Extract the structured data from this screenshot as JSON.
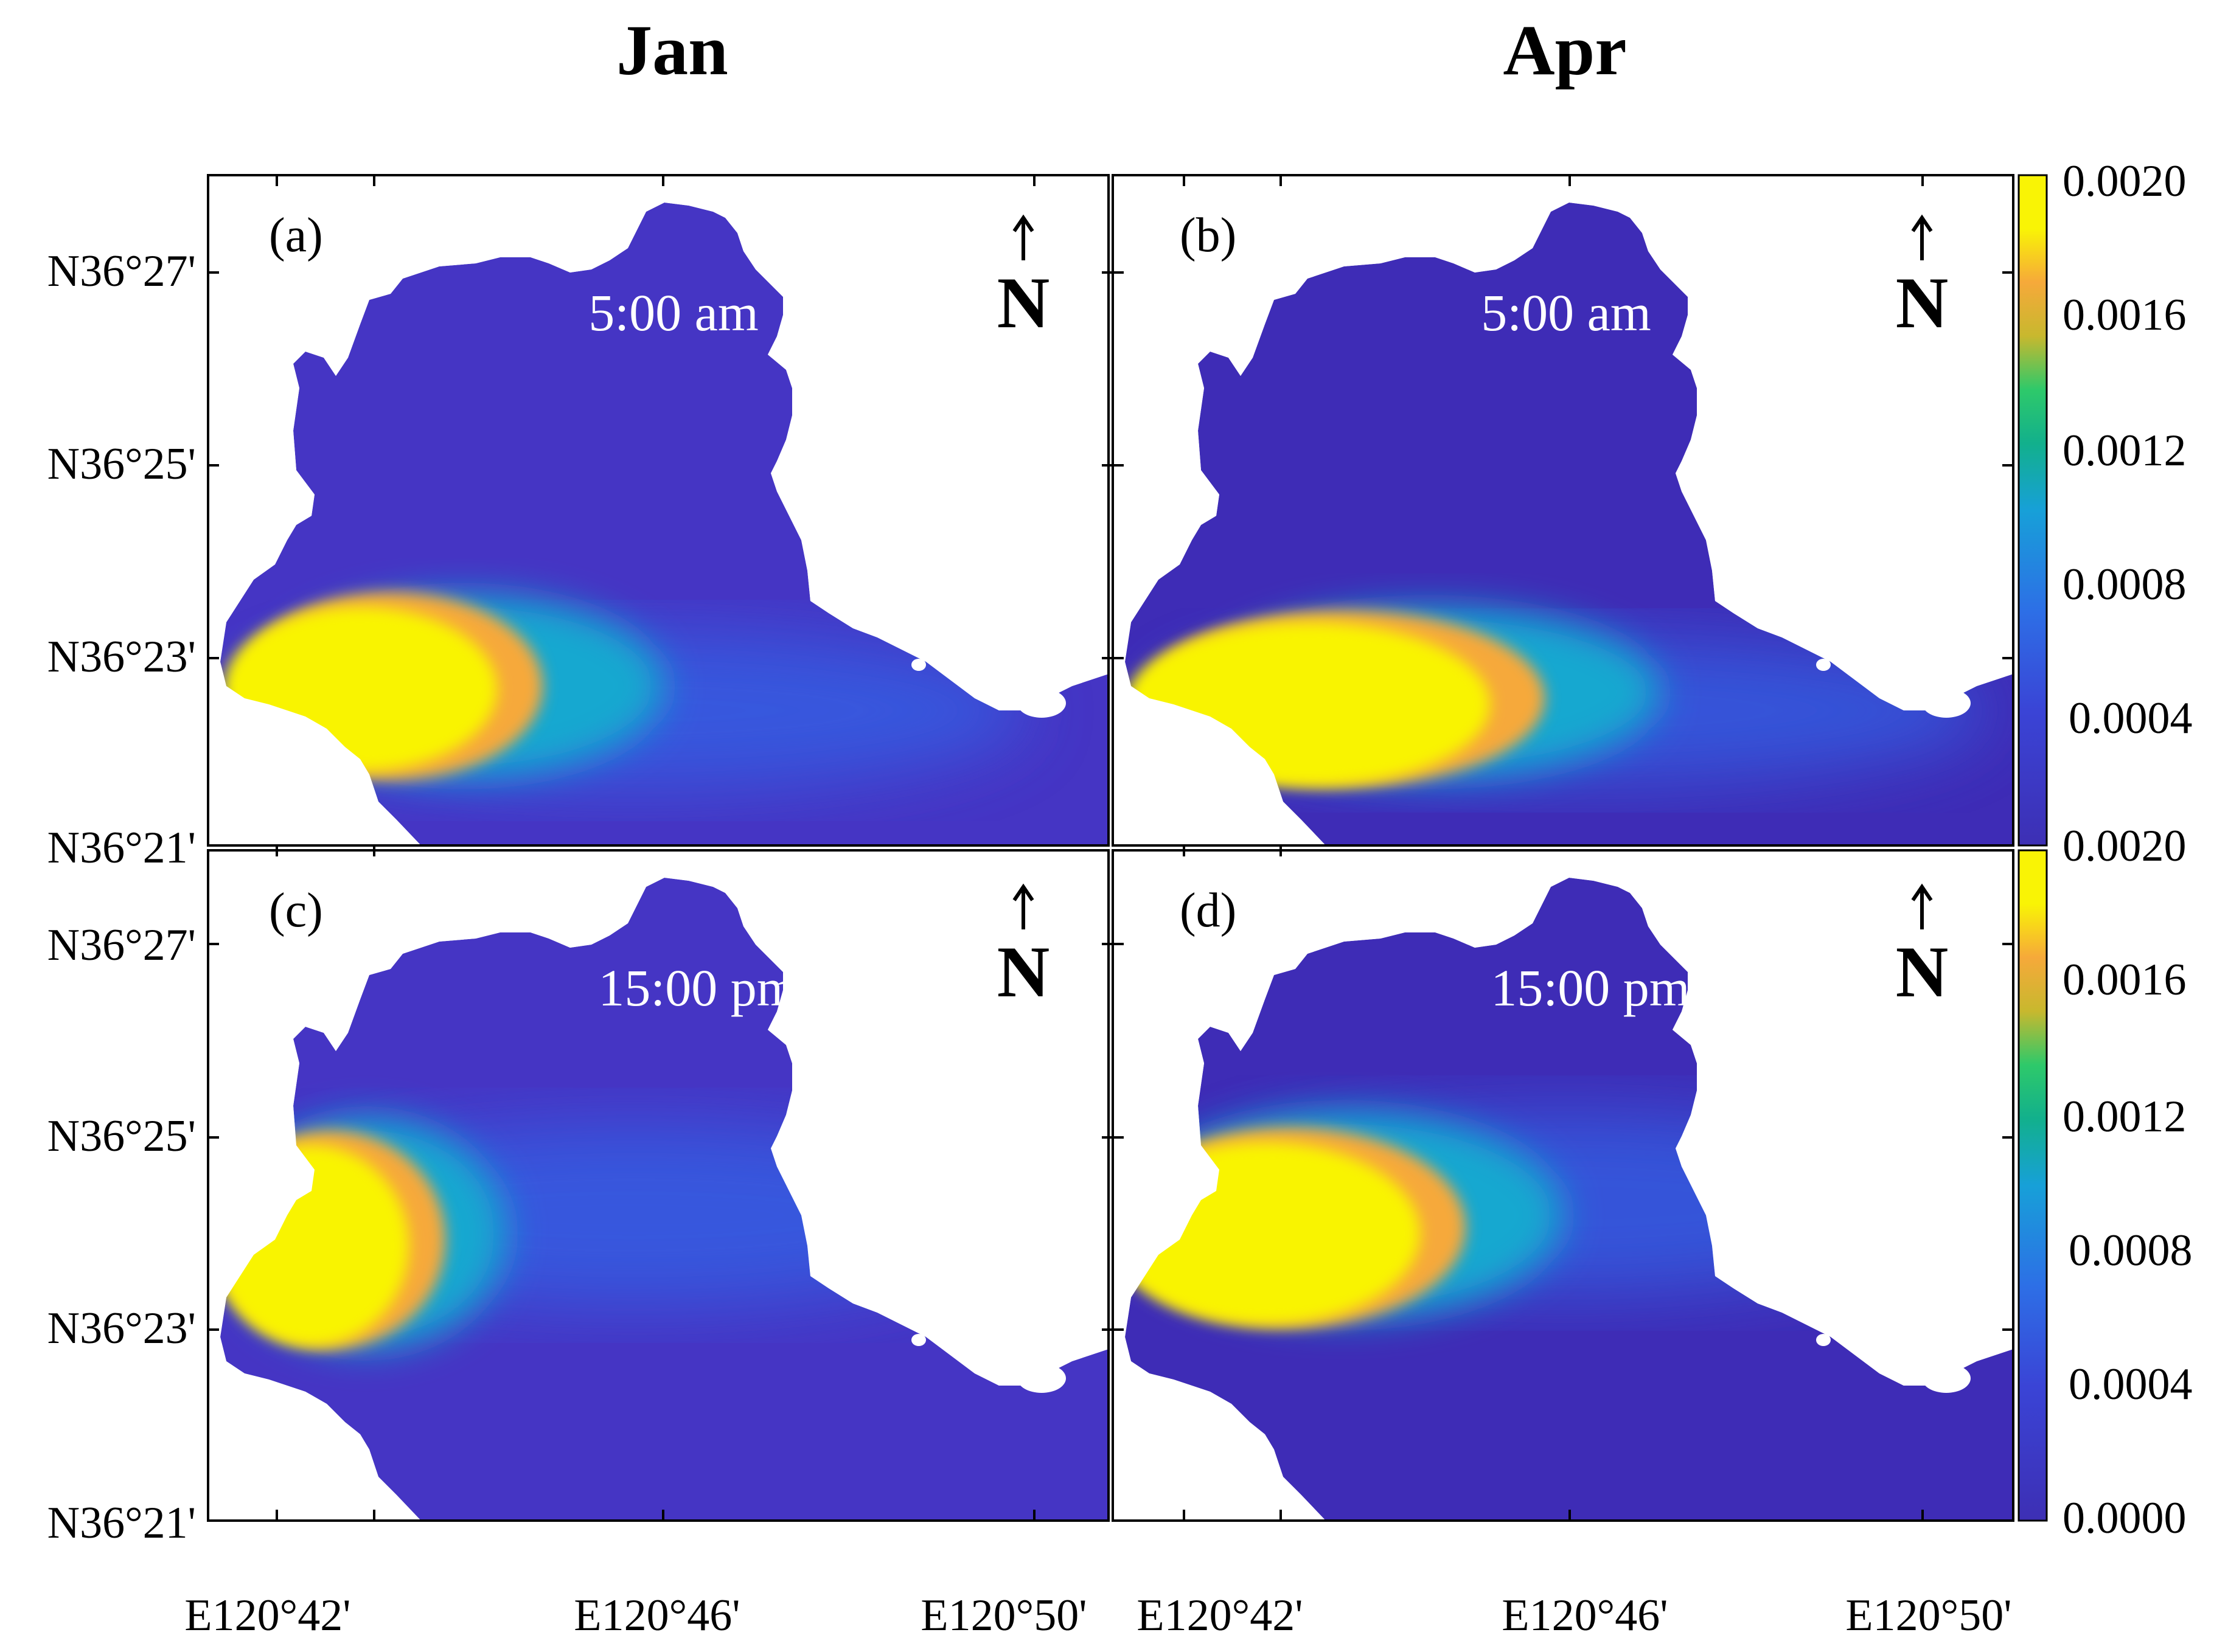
{
  "column_titles": [
    "Jan",
    "Apr"
  ],
  "panels": [
    {
      "label": "(a)",
      "time": "5:00 am"
    },
    {
      "label": "(b)",
      "time": "5:00 am"
    },
    {
      "label": "(c)",
      "time": "15:00 pm"
    },
    {
      "label": "(d)",
      "time": "15:00 pm"
    }
  ],
  "north_arrow": {
    "letter": "N",
    "icon": "north-arrow-icon"
  },
  "y_ticks": [
    "N36°27'",
    "N36°25'",
    "N36°23'",
    "N36°21'"
  ],
  "x_ticks": [
    "E120°42'",
    "E120°46'",
    "E120°50'"
  ],
  "colorbar_top": [
    "0.0020",
    "0.0016",
    "0.0012",
    "0.0008",
    "0.0004"
  ],
  "colorbar_bottom": [
    "0.0020",
    "0.0016",
    "0.0012",
    "0.0008",
    "0.0004",
    "0.0000"
  ],
  "colors": {
    "low": "#3d2fb4",
    "background_water": "#4030c0",
    "mid_blue": "#2d6fe6",
    "teal": "#12b08c",
    "green": "#2ec96a",
    "orange": "#f6a93a",
    "high": "#f9f405",
    "frame": "#000000",
    "label_on_map": "#ffffff"
  }
}
